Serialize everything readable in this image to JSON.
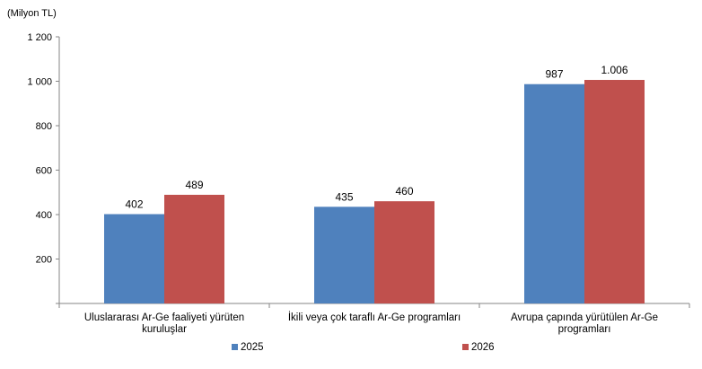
{
  "chart_data": {
    "type": "bar",
    "unit_label": "(Milyon TL)",
    "categories": [
      [
        "Uluslararası Ar-Ge faaliyeti yürüten",
        "kuruluşlar"
      ],
      [
        "İkili veya çok taraflı Ar-Ge programları"
      ],
      [
        "Avrupa çapında yürütülen Ar-Ge",
        "programları"
      ]
    ],
    "series": [
      {
        "name": "2025",
        "color": "#4F81BD",
        "values": [
          402,
          435,
          987
        ],
        "labels": [
          "402",
          "435",
          "987"
        ]
      },
      {
        "name": "2026",
        "color": "#C0504D",
        "values": [
          489,
          460,
          1006
        ],
        "labels": [
          "489",
          "460",
          "1.006"
        ]
      }
    ],
    "ylim": [
      0,
      1200
    ],
    "yticks": [
      200,
      400,
      600,
      800,
      1000,
      1200
    ],
    "ytick_labels": [
      "200",
      "400",
      "600",
      "800",
      "1 000",
      "1 200"
    ],
    "grid": false,
    "legend_position": "bottom"
  }
}
